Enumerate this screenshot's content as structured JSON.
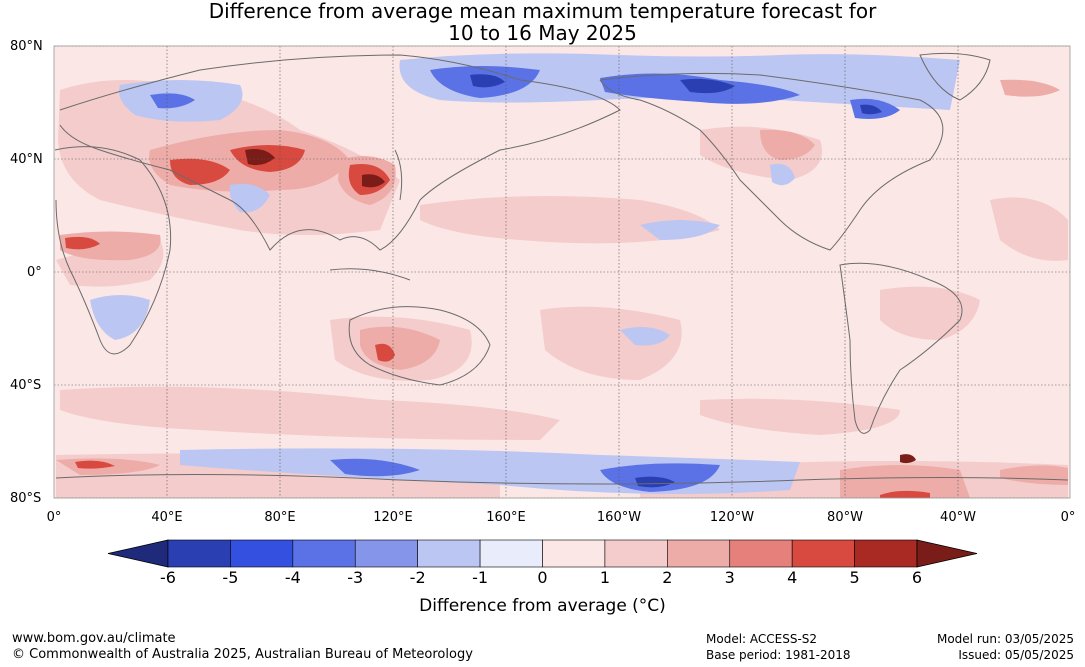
{
  "title": {
    "line1": "Difference from average mean maximum temperature forecast for",
    "line2": "10 to 16 May 2025"
  },
  "latitude_labels": [
    "80°N",
    "40°N",
    "0°",
    "40°S",
    "80°S"
  ],
  "longitude_labels": [
    "0°",
    "40°E",
    "80°E",
    "120°E",
    "160°E",
    "160°W",
    "120°W",
    "80°W",
    "40°W",
    "0°"
  ],
  "colorbar": {
    "ticks": [
      "-6",
      "-5",
      "-4",
      "-3",
      "-2",
      "-1",
      "0",
      "1",
      "2",
      "3",
      "4",
      "5",
      "6"
    ],
    "colors": [
      "#1f2a7a",
      "#2a3fb2",
      "#3350e0",
      "#5a72e6",
      "#8596ea",
      "#bcc6f3",
      "#e8ecfb",
      "#fbe7e6",
      "#f4cccb",
      "#eeaca8",
      "#e5807a",
      "#d84a40",
      "#a82a22",
      "#7a1c18"
    ],
    "label": "Difference from average (°C)"
  },
  "footer": {
    "url": "www.bom.gov.au/climate",
    "copyright": "© Commonwealth of Australia 2025, Australian Bureau of Meteorology",
    "model": "Model: ACCESS-S2",
    "base_period": "Base period: 1981-2018",
    "model_run": "Model run: 03/05/2025",
    "issued": "Issued: 05/05/2025"
  }
}
